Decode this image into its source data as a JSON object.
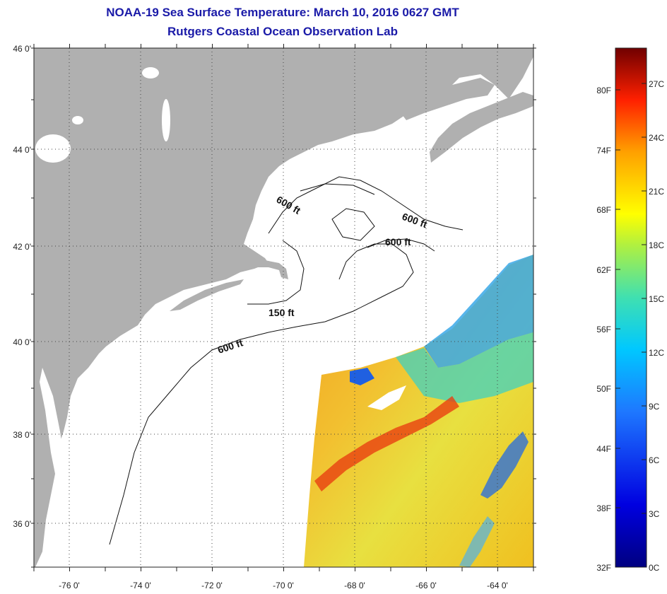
{
  "header": {
    "title": "NOAA-19 Sea Surface Temperature:  March 10, 2016 0627 GMT",
    "subtitle": "Rutgers Coastal Ocean Observation Lab"
  },
  "map": {
    "lat_range": [
      35,
      46
    ],
    "lon_range": [
      -77,
      -63
    ],
    "lat_ticks": [
      {
        "value": 46,
        "label": "46 0'"
      },
      {
        "value": 44,
        "label": "44 0'"
      },
      {
        "value": 42,
        "label": "42 0'"
      },
      {
        "value": 40,
        "label": "40 0'"
      },
      {
        "value": 38,
        "label": "38 0'"
      },
      {
        "value": 36,
        "label": "36 0'"
      }
    ],
    "lon_ticks": [
      {
        "value": -76,
        "label": "-76 0'"
      },
      {
        "value": -74,
        "label": "-74 0'"
      },
      {
        "value": -72,
        "label": "-72 0'"
      },
      {
        "value": -70,
        "label": "-70 0'"
      },
      {
        "value": -68,
        "label": "-68 0'"
      },
      {
        "value": -66,
        "label": "-66 0'"
      },
      {
        "value": -64,
        "label": "-64 0'"
      }
    ],
    "contour_labels": [
      {
        "text": "600 ft",
        "lon": -69.7,
        "lat": 42.7
      },
      {
        "text": "600 ft",
        "lon": -65.4,
        "lat": 42.4
      },
      {
        "text": "600 ft",
        "lon": -67.0,
        "lat": 42.0
      },
      {
        "text": "150 ft",
        "lon": -70.3,
        "lat": 40.75
      },
      {
        "text": "600 ft",
        "lon": -71.6,
        "lat": 39.85
      }
    ],
    "colors": {
      "land": "#b0b0b0",
      "ocean": "#ffffff",
      "grid": "#444444"
    }
  },
  "colorbar": {
    "f_labels": [
      "80F",
      "74F",
      "68F",
      "62F",
      "56F",
      "50F",
      "44F",
      "38F",
      "32F"
    ],
    "c_labels": [
      "27C",
      "24C",
      "21C",
      "18C",
      "15C",
      "12C",
      "9C",
      "6C",
      "3C",
      "0C"
    ],
    "range_c": [
      0,
      29
    ]
  }
}
